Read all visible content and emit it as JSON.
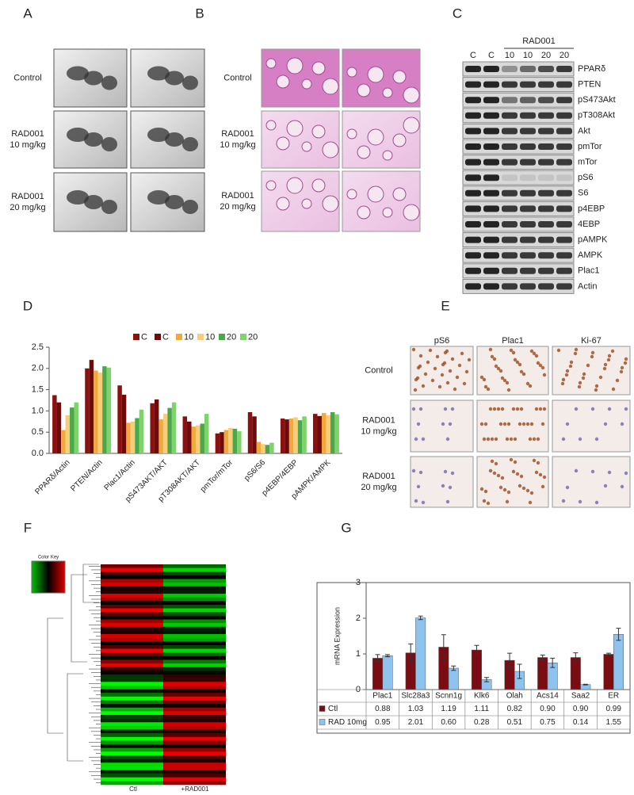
{
  "panels": {
    "A": {
      "label": "A",
      "rows": [
        [
          "Control"
        ],
        [
          "RAD001",
          "10 mg/kg"
        ],
        [
          "RAD001",
          "20 mg/kg"
        ]
      ]
    },
    "B": {
      "label": "B",
      "rows": [
        [
          "Control"
        ],
        [
          "RAD001",
          "10 mg/kg"
        ],
        [
          "RAD001",
          "20 mg/kg"
        ]
      ]
    },
    "C": {
      "label": "C",
      "header": "RAD001",
      "lanes": [
        "C",
        "C",
        "10",
        "10",
        "20",
        "20"
      ],
      "rows": [
        "PPARδ",
        "PTEN",
        "pS473Akt",
        "pT308Akt",
        "Akt",
        "pmTor",
        "mTor",
        "pS6",
        "S6",
        "p4EBP",
        "4EBP",
        "pAMPK",
        "AMPK",
        "Plac1",
        "Actin"
      ]
    },
    "D": {
      "label": "D"
    },
    "E": {
      "label": "E",
      "columns": [
        "pS6",
        "Plac1",
        "Ki-67"
      ],
      "rows": [
        [
          "Control"
        ],
        [
          "RAD001",
          "10 mg/kg"
        ],
        [
          "RAD001",
          "20 mg/kg"
        ]
      ]
    },
    "F": {
      "label": "F",
      "key": "Color Key",
      "columns": [
        "Ctl",
        "+RAD001"
      ]
    },
    "G": {
      "label": "G"
    }
  },
  "chart_data": [
    {
      "type": "bar",
      "legend": "top",
      "categories": [
        "PPARδ/Actin",
        "PTEN/Actin",
        "Plac1/Actin",
        "pS473AKT/AKT",
        "pT308AKT/AKT",
        "pmTor/mTor",
        "pS6/S6",
        "p4EBP/4EBP",
        "pAMPK/AMPK"
      ],
      "series": [
        {
          "name": "C",
          "color": "#8b1010",
          "values": [
            1.37,
            2.0,
            1.6,
            1.18,
            0.87,
            0.47,
            0.97,
            0.82,
            0.93
          ]
        },
        {
          "name": "C",
          "color": "#6e0a0a",
          "values": [
            1.2,
            2.2,
            1.38,
            1.27,
            0.75,
            0.5,
            0.87,
            0.8,
            0.88
          ]
        },
        {
          "name": "10",
          "color": "#f2a93b",
          "values": [
            0.55,
            1.95,
            0.72,
            0.8,
            0.63,
            0.55,
            0.27,
            0.82,
            0.95
          ]
        },
        {
          "name": "10",
          "color": "#f7cd7a",
          "values": [
            0.9,
            1.9,
            0.75,
            0.93,
            0.66,
            0.6,
            0.22,
            0.85,
            0.9
          ]
        },
        {
          "name": "20",
          "color": "#4aa84a",
          "values": [
            1.08,
            2.05,
            0.83,
            1.07,
            0.7,
            0.58,
            0.2,
            0.78,
            0.97
          ]
        },
        {
          "name": "20",
          "color": "#7ed36a",
          "values": [
            1.2,
            2.02,
            1.03,
            1.2,
            0.93,
            0.52,
            0.25,
            0.87,
            0.92
          ]
        }
      ],
      "ylim": [
        0,
        2.5
      ],
      "yticks": [
        {
          "value": 0,
          "label": "0.0"
        },
        0.5,
        {
          "value": 1,
          "label": "1.0"
        },
        1.5,
        {
          "value": 2,
          "label": "2.0"
        },
        2.5
      ]
    },
    {
      "type": "bar",
      "ylabel": "mRNA Expression",
      "categories": [
        "Plac1",
        "Slc28a3",
        "Scnn1g",
        "Klk6",
        "Olah",
        "Acs14",
        "Saa2",
        "ER"
      ],
      "series": [
        {
          "name": "Ctl",
          "color": "#7a0c14",
          "values": [
            0.88,
            1.03,
            1.19,
            1.11,
            0.82,
            0.9,
            0.9,
            0.99
          ],
          "value_labels": [
            "0.88",
            "1.03",
            "1.19",
            "1.11",
            "0.82",
            "0.90",
            "0.90",
            "0.99"
          ],
          "errors": [
            0.1,
            0.25,
            0.35,
            0.13,
            0.2,
            0.07,
            0.13,
            0.03
          ]
        },
        {
          "name": "RAD 10mg",
          "color": "#8fc3ef",
          "values": [
            0.95,
            2.01,
            0.6,
            0.28,
            0.51,
            0.75,
            0.14,
            1.55
          ],
          "value_labels": [
            "0.95",
            "2.01",
            "0.60",
            "0.28",
            "0.51",
            "0.75",
            "0.14",
            "1.55"
          ],
          "errors": [
            0.03,
            0.05,
            0.06,
            0.06,
            0.2,
            0.13,
            0.01,
            0.17
          ]
        }
      ],
      "ylim": [
        0,
        3
      ],
      "yticks": [
        0,
        1,
        2,
        3
      ]
    }
  ]
}
